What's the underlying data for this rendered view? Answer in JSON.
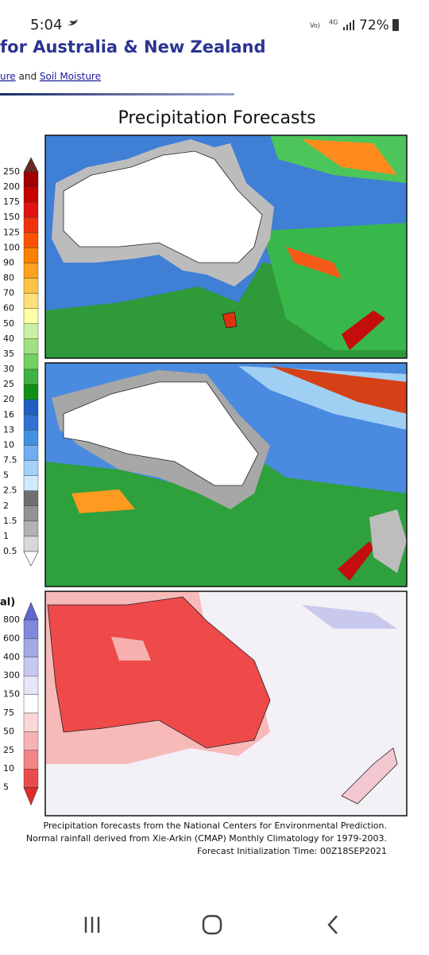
{
  "status_bar": {
    "time": "5:04",
    "network": "4G",
    "battery": "72%"
  },
  "header": {
    "title": "for Australia & New Zealand",
    "links": [
      {
        "text": "ure"
      },
      {
        "text": " and "
      },
      {
        "text": "Soil Moisture"
      }
    ]
  },
  "figure": {
    "title": "Precipitation Forecasts",
    "scale_precip": [
      "250",
      "200",
      "175",
      "150",
      "125",
      "100",
      "90",
      "80",
      "70",
      "60",
      "50",
      "40",
      "35",
      "30",
      "25",
      "20",
      "16",
      "13",
      "10",
      "7.5",
      "5",
      "2.5",
      "2",
      "1.5",
      "1",
      "0.5"
    ],
    "scale_percent_title": "al)",
    "scale_percent": [
      "800",
      "600",
      "400",
      "300",
      "150",
      "75",
      "50",
      "25",
      "10",
      "5"
    ],
    "caption": [
      "Precipitation forecasts from the National Centers for Environmental Prediction.",
      "Normal rainfall derived from Xie-Arkin (CMAP) Monthly Climatology for 1979-2003.",
      "Forecast Initialization Time: 00Z18SEP2021"
    ]
  }
}
